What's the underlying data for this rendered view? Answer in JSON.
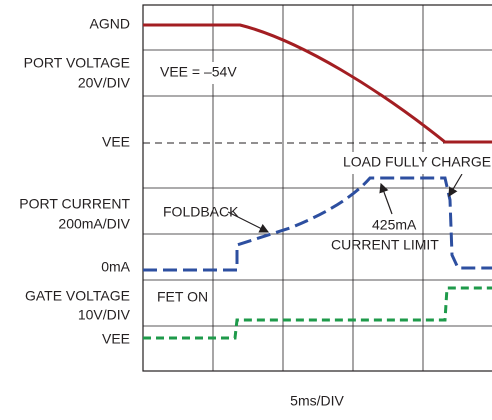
{
  "axis_labels": {
    "agnd": "AGND",
    "port_voltage": "PORT VOLTAGE",
    "port_voltage_scale": "20V/DIV",
    "vee_top": "VEE",
    "port_current": "PORT CURRENT",
    "port_current_scale": "200mA/DIV",
    "zero_current": "0mA",
    "gate_voltage": "GATE VOLTAGE",
    "gate_voltage_scale": "10V/DIV",
    "vee_bottom": "VEE",
    "time_scale": "5ms/DIV"
  },
  "annotations": {
    "vee_value": "VEE = –54V",
    "load_charged": "LOAD FULLY CHARGED",
    "foldback": "FOLDBACK",
    "current_limit_value": "425mA",
    "current_limit": "CURRENT LIMIT",
    "fet_on": "FET ON"
  }
}
